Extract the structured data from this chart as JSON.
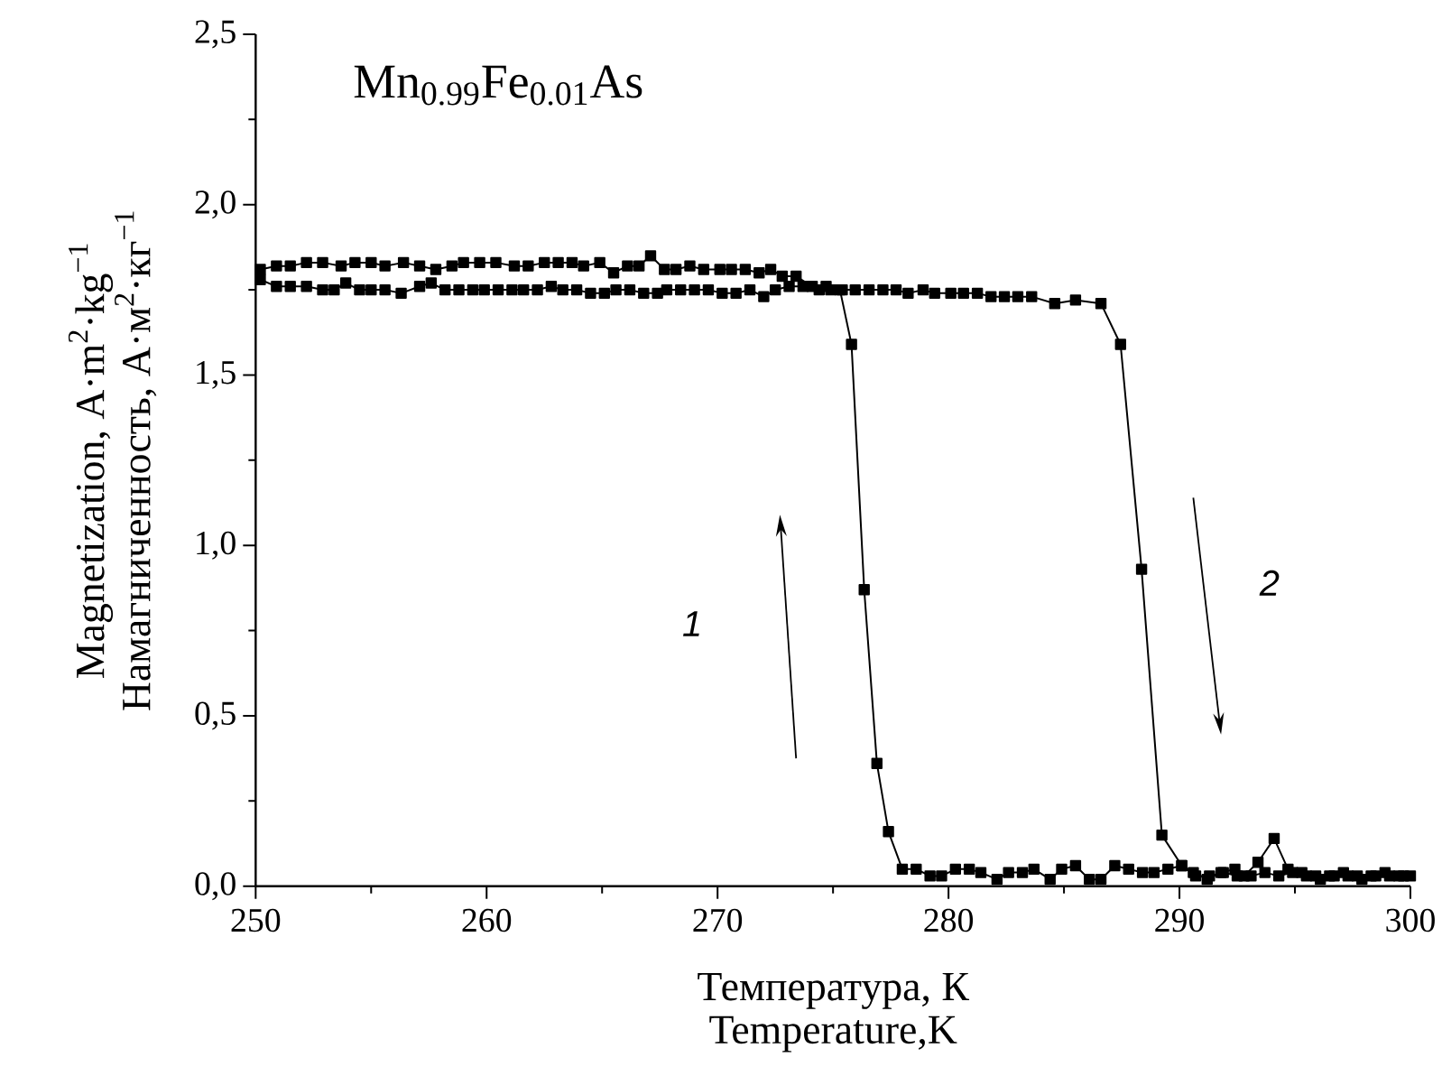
{
  "chart_data": {
    "type": "line",
    "xlabel": "Температура, К\nTemperature,K",
    "ylabel": "Magnetization, A·m$^{2}$·kg$^{−1}$\nНамагниченность, А·м$^{2}$·кг$^{−1}$",
    "annotations": [
      "Mn$_{0.99}$Fe$_{0.01}$As",
      "1",
      "2"
    ],
    "xlim": [
      250,
      300
    ],
    "xticks": [
      250,
      260,
      270,
      280,
      290,
      300
    ],
    "ylim": [
      0,
      2.5
    ],
    "yticks": [
      {
        "value": 0,
        "label": "0,0"
      },
      {
        "value": 0.5,
        "label": "0,5"
      },
      {
        "value": 1,
        "label": "1,0"
      },
      {
        "value": 1.5,
        "label": "1,5"
      },
      {
        "value": 2,
        "label": "2,0"
      },
      {
        "value": 2.5,
        "label": "2,5"
      }
    ],
    "grid": false,
    "marker": "square",
    "line_style": "solid",
    "series": [
      {
        "color": "#000000",
        "x": [
          250.2,
          250.9,
          251.5,
          252.2,
          252.9,
          253.7,
          254.3,
          255.0,
          255.6,
          256.4,
          257.1,
          257.8,
          258.5,
          259.0,
          259.7,
          260.4,
          261.2,
          261.8,
          262.5,
          263.1,
          263.7,
          264.2,
          264.9,
          265.5,
          266.1,
          266.6,
          267.1,
          267.7,
          268.2,
          268.8,
          269.4,
          270.1,
          270.6,
          271.2,
          271.8,
          272.3,
          272.8,
          273.4,
          274.1,
          274.7,
          275.3,
          275.8,
          276.35,
          276.9,
          277.4,
          278.0,
          278.6,
          279.2,
          279.7,
          280.3,
          280.9,
          281.4,
          282.1,
          282.6,
          283.2,
          283.7,
          284.4,
          284.9,
          285.5,
          286.1,
          286.6,
          287.2,
          287.8,
          288.4,
          288.9,
          289.5,
          290.1,
          290.7,
          291.3,
          291.9,
          292.5,
          293.1,
          293.7,
          294.3,
          294.9,
          295.5,
          296.1,
          296.7,
          297.3,
          297.9,
          298.5,
          299.1,
          299.7
        ],
        "values": [
          1.81,
          1.82,
          1.82,
          1.83,
          1.83,
          1.82,
          1.83,
          1.83,
          1.82,
          1.83,
          1.82,
          1.81,
          1.82,
          1.83,
          1.83,
          1.83,
          1.82,
          1.82,
          1.83,
          1.83,
          1.83,
          1.82,
          1.83,
          1.8,
          1.82,
          1.82,
          1.85,
          1.81,
          1.81,
          1.82,
          1.81,
          1.81,
          1.81,
          1.81,
          1.8,
          1.81,
          1.79,
          1.79,
          1.76,
          1.76,
          1.75,
          1.59,
          0.87,
          0.36,
          0.16,
          0.05,
          0.05,
          0.03,
          0.03,
          0.05,
          0.05,
          0.04,
          0.02,
          0.04,
          0.04,
          0.05,
          0.02,
          0.05,
          0.06,
          0.02,
          0.02,
          0.06,
          0.05,
          0.04,
          0.04,
          0.05,
          0.06,
          0.03,
          0.03,
          0.04,
          0.03,
          0.03,
          0.04,
          0.03,
          0.04,
          0.03,
          0.02,
          0.03,
          0.03,
          0.02,
          0.03,
          0.03,
          0.03
        ]
      },
      {
        "color": "#000000",
        "x": [
          250.2,
          250.9,
          251.5,
          252.2,
          252.9,
          253.4,
          253.9,
          254.5,
          255.0,
          255.6,
          256.3,
          257.1,
          257.6,
          258.2,
          258.8,
          259.4,
          259.9,
          260.5,
          261.1,
          261.6,
          262.2,
          262.8,
          263.3,
          263.9,
          264.5,
          265.1,
          265.6,
          266.2,
          266.8,
          267.4,
          267.8,
          268.4,
          269.0,
          269.6,
          270.2,
          270.8,
          271.4,
          272.0,
          272.5,
          273.1,
          273.7,
          274.4,
          274.9,
          275.4,
          275.96,
          276.56,
          277.16,
          277.73,
          278.25,
          278.9,
          279.4,
          280.1,
          280.65,
          281.25,
          281.84,
          282.42,
          283.0,
          283.6,
          284.6,
          285.5,
          286.6,
          287.45,
          288.36,
          289.24,
          290.1,
          290.6,
          291.2,
          291.8,
          292.4,
          292.8,
          293.4,
          294.1,
          294.7,
          295.3,
          295.9,
          296.5,
          297.1,
          297.7,
          298.3,
          298.9,
          299.5,
          300.0
        ],
        "values": [
          1.78,
          1.76,
          1.76,
          1.76,
          1.75,
          1.75,
          1.77,
          1.75,
          1.75,
          1.75,
          1.74,
          1.76,
          1.77,
          1.75,
          1.75,
          1.75,
          1.75,
          1.75,
          1.75,
          1.75,
          1.75,
          1.76,
          1.75,
          1.75,
          1.74,
          1.74,
          1.75,
          1.75,
          1.74,
          1.74,
          1.75,
          1.75,
          1.75,
          1.75,
          1.74,
          1.74,
          1.75,
          1.73,
          1.75,
          1.76,
          1.76,
          1.75,
          1.75,
          1.75,
          1.75,
          1.75,
          1.75,
          1.75,
          1.74,
          1.75,
          1.74,
          1.74,
          1.74,
          1.74,
          1.73,
          1.73,
          1.73,
          1.73,
          1.71,
          1.72,
          1.71,
          1.59,
          0.93,
          0.15,
          0.06,
          0.04,
          0.02,
          0.04,
          0.05,
          0.03,
          0.07,
          0.14,
          0.05,
          0.04,
          0.03,
          0.03,
          0.04,
          0.03,
          0.03,
          0.04,
          0.03,
          0.03
        ]
      }
    ]
  }
}
